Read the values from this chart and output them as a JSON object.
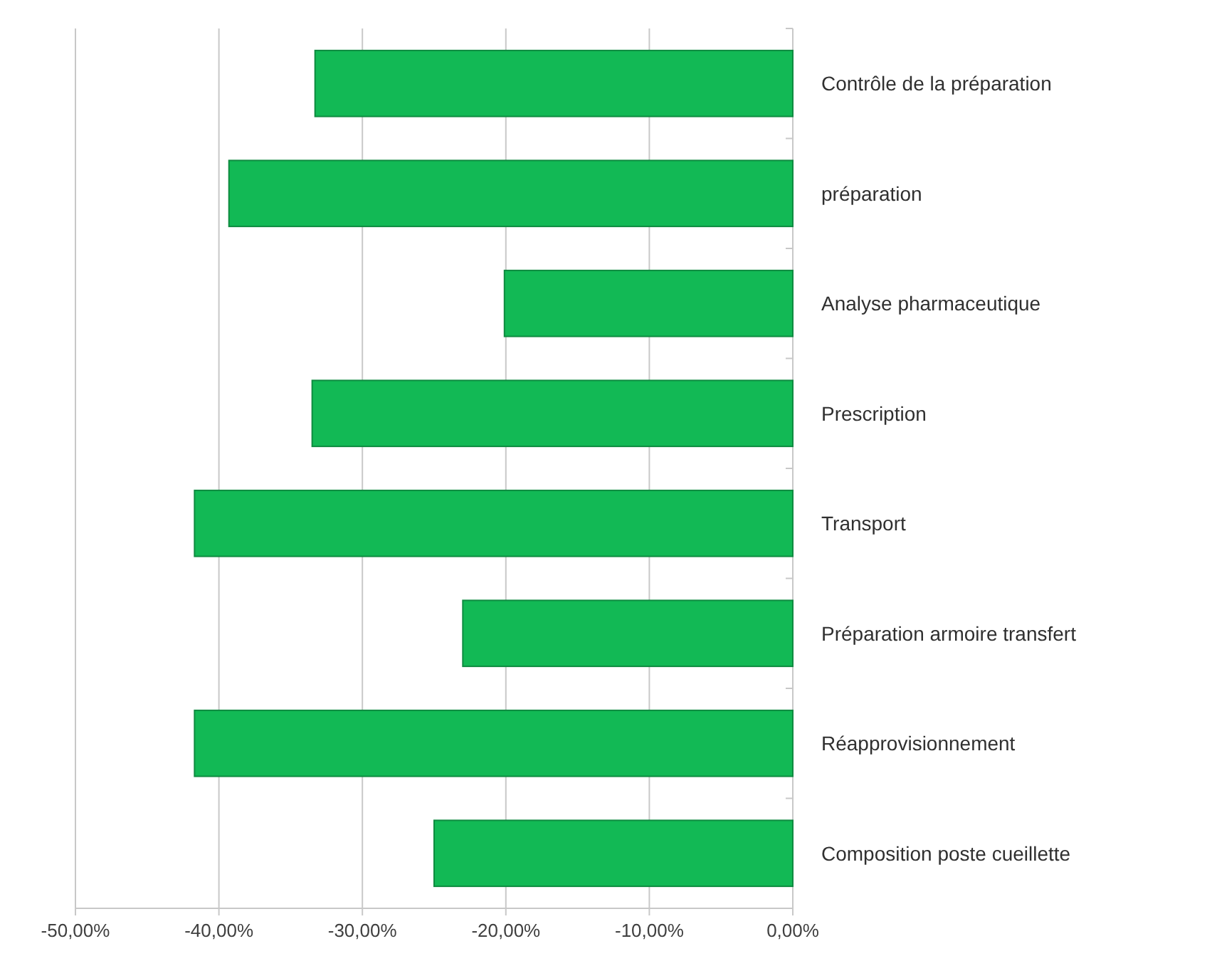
{
  "chart_data": {
    "type": "bar",
    "orientation": "horizontal",
    "categories": [
      "Contrôle de la préparation",
      "préparation",
      "Analyse pharmaceutique",
      "Prescription",
      "Transport",
      "Préparation armoire transfert",
      "Réapprovisionnement",
      "Composition poste cueillette"
    ],
    "series": [
      {
        "color": "#12b955",
        "values": [
          -33.3,
          -39.3,
          -20.1,
          -33.5,
          -41.7,
          -23.0,
          -41.7,
          -25.0
        ]
      }
    ],
    "xlim": [
      -50,
      0
    ],
    "xticks": [
      {
        "value": -50,
        "label": "-50,00%"
      },
      {
        "value": -40,
        "label": "-40,00%"
      },
      {
        "value": -30,
        "label": "-30,00%"
      },
      {
        "value": -20,
        "label": "-20,00%"
      },
      {
        "value": -10,
        "label": "-10,00%"
      },
      {
        "value": 0,
        "label": "0,00%"
      }
    ],
    "grid": "x"
  }
}
